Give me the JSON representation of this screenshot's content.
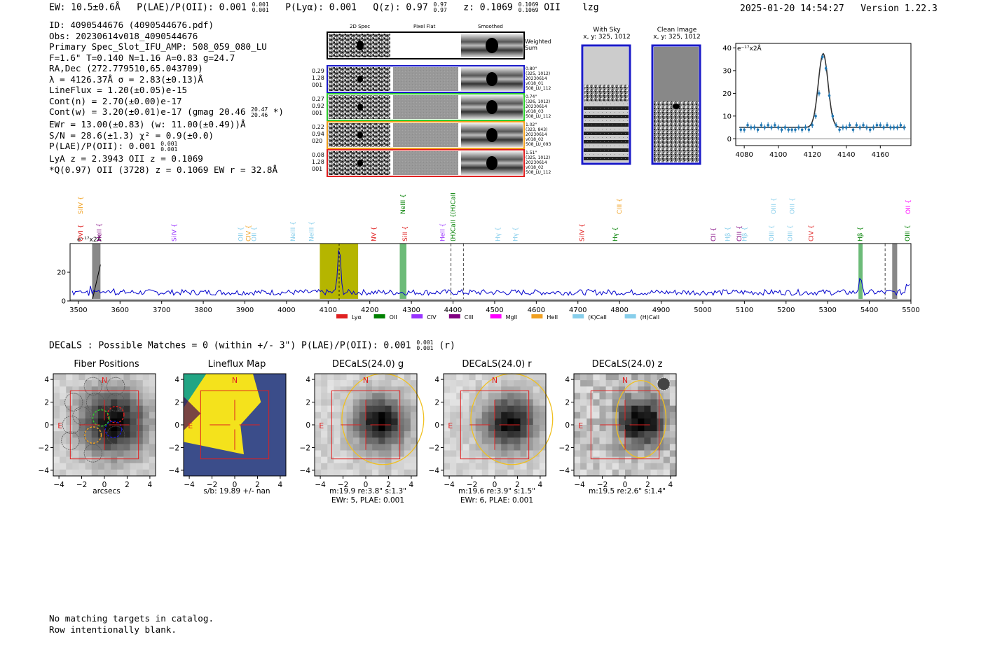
{
  "header": {
    "ew": "EW: 10.5±0.6Å",
    "plae_label": "P(LAE)/P(OII): 0.001",
    "plae_sup": "0.001",
    "plae_sub": "0.001",
    "plya_label": "P(Lyα): 0.001",
    "qz_label": "Q(z): 0.97",
    "qz_sup": "0.97",
    "qz_sub": "0.97",
    "z_label": "z: 0.1069",
    "z_sup": "0.1069",
    "z_sub": "0.1069",
    "line": "OII",
    "flag": "lzg",
    "timestamp": "2025-01-20 14:54:27",
    "version": "Version 1.22.3"
  },
  "info": {
    "id": "ID: 4090544676 (4090544676.pdf)",
    "obs": "Obs: 20230614v018_4090544676",
    "primary": "Primary Spec_Slot_IFU_AMP: 508_059_080_LU",
    "fit": "F=1.6\"  T=0.140  N=1.16  A=0.83  g=24.7",
    "radec": "RA,Dec (272.779510,65.043709)",
    "lambda": "λ = 4126.37Å  σ = 2.83(±0.13)Å",
    "lineflux": "LineFlux = 1.20(±0.05)e-15",
    "contn": "Cont(n) = 2.70(±0.00)e-17",
    "contw": "Cont(w) = 3.20(±0.01)e-17 (gmag 20.46",
    "gmag_sup": "20.47",
    "gmag_sub": "20.46",
    "contw_end": "*)",
    "ewr": "EWr = 13.00(±0.83) (w: 11.00(±0.49))Å",
    "sn": "S/N = 28.6(±1.3)  χ² = 0.9(±0.0)",
    "plae2": "P(LAE)/P(OII): 0.001",
    "plae2_sup": "0.001",
    "plae2_sub": "0.001",
    "lya": "LyA z = 2.3943  OII z = 0.1069",
    "q": "*Q(0.97) OII (3728) z = 0.1069  EW r = 32.8Å"
  },
  "cutouts": {
    "col_headers": [
      "2D Spec",
      "Pixel Flat",
      "Smoothed"
    ],
    "weighted_sum": [
      "Weighted",
      "Sum"
    ],
    "rows": [
      {
        "left": [
          "0.29",
          "1.28",
          "001"
        ],
        "right": [
          "0.80\"",
          "(325, 1012)",
          "20230614",
          "v018_01",
          "508_LU_112"
        ],
        "color": "#1a1ac8"
      },
      {
        "left": [
          "0.27",
          "0.92",
          "001"
        ],
        "right": [
          "0.74\"",
          "(326, 1012)",
          "20230614",
          "v018_03",
          "508_LU_112"
        ],
        "color": "#2ecc2e"
      },
      {
        "left": [
          "0.22",
          "0.94",
          "020"
        ],
        "right": [
          "1.02\"",
          "(323, 843)",
          "20230614",
          "v018_02",
          "508_LU_093"
        ],
        "color": "#f0a020"
      },
      {
        "left": [
          "0.08",
          "1.28",
          "001"
        ],
        "right": [
          "1.51\"",
          "(325, 1012)",
          "20230614",
          "v018_02",
          "508_LU_112"
        ],
        "color": "#e02020"
      }
    ],
    "with_sky_title": "With Sky",
    "with_sky_xy": "x, y: 325, 1012",
    "clean_title": "Clean Image",
    "clean_xy": "x, y: 325, 1012"
  },
  "zoom_chart": {
    "ylabel": "e⁻¹⁷x2Å",
    "x_ticks": [
      "4080",
      "4100",
      "4120",
      "4140",
      "4160"
    ],
    "y_ticks": [
      "0",
      "10",
      "20",
      "30",
      "40"
    ]
  },
  "spectrum_labels": {
    "ylabel": "e⁻¹⁷x2Å",
    "legend": [
      "Lyα",
      "OII",
      "CIV",
      "CIII",
      "MgII",
      "HeII",
      "(K)CaII",
      "(H)CaII"
    ],
    "top_lines": [
      {
        "name": "SiIV",
        "color": "#f0a020"
      },
      {
        "name": "NeIII",
        "color": "#008000"
      },
      {
        "name": "(H)CaII",
        "color": "#008000"
      },
      {
        "name": "CIII",
        "color": "#f0a020"
      },
      {
        "name": "OIII",
        "color": "#87ceeb"
      },
      {
        "name": "OIII",
        "color": "#87ceeb"
      },
      {
        "name": "OII",
        "color": "#ff00ff"
      }
    ],
    "mid_lines": [
      {
        "name": "OVI",
        "color": "#e02020"
      },
      {
        "name": "HeII",
        "color": "#800080"
      },
      {
        "name": "SiIV",
        "color": "#9933ff"
      },
      {
        "name": "OII",
        "color": "#87ceeb"
      },
      {
        "name": "CIV",
        "color": "#f0a020"
      },
      {
        "name": "OII",
        "color": "#87ceeb"
      },
      {
        "name": "NeIII",
        "color": "#87ceeb"
      },
      {
        "name": "NeIII",
        "color": "#87ceeb"
      },
      {
        "name": "NV",
        "color": "#e02020"
      },
      {
        "name": "SiII",
        "color": "#e02020"
      },
      {
        "name": "HeII",
        "color": "#9933ff"
      },
      {
        "name": "(H)CaII",
        "color": "#008000"
      },
      {
        "name": "Hγ",
        "color": "#87ceeb"
      },
      {
        "name": "Hγ",
        "color": "#87ceeb"
      },
      {
        "name": "SiIV",
        "color": "#e02020"
      },
      {
        "name": "Hγ",
        "color": "#008000"
      },
      {
        "name": "CII",
        "color": "#800080"
      },
      {
        "name": "Hβ",
        "color": "#87ceeb"
      },
      {
        "name": "CIII",
        "color": "#800080"
      },
      {
        "name": "Hβ",
        "color": "#87ceeb"
      },
      {
        "name": "OIII",
        "color": "#87ceeb"
      },
      {
        "name": "OIII",
        "color": "#87ceeb"
      },
      {
        "name": "CIV",
        "color": "#e02020"
      },
      {
        "name": "Hβ",
        "color": "#008000"
      },
      {
        "name": "OIII",
        "color": "#008000"
      }
    ]
  },
  "decals": {
    "header": "DECaLS : Possible Matches = 0 (within +/- 3\")  P(LAE)/P(OII): 0.001",
    "header_sup": "0.001",
    "header_sub": "0.001",
    "header_end": "(r)",
    "panels": [
      {
        "title": "Fiber Positions",
        "caption1": "arcsecs",
        "caption2": ""
      },
      {
        "title": "Lineflux Map",
        "caption1": "s/b: 19.89 +/- nan",
        "caption2": ""
      },
      {
        "title": "DECaLS(24.0) g",
        "caption1": "m:19.9  re:3.8\"  s:1.3\"",
        "caption2": "EWr: 5, PLAE: 0.001"
      },
      {
        "title": "DECaLS(24.0) r",
        "caption1": "m:19.6  re:3.9\"  s:1.5\"",
        "caption2": "EWr: 6, PLAE: 0.001"
      },
      {
        "title": "DECaLS(24.0) z",
        "caption1": "m:19.5  re:2.6\"  s:1.4\"",
        "caption2": ""
      }
    ],
    "axis_ticks": [
      "−4",
      "−2",
      "0",
      "2",
      "4"
    ],
    "compass_n": "N",
    "compass_e": "E"
  },
  "footer": {
    "line1": "No matching targets in catalog.",
    "line2": "Row intentionally blank."
  },
  "colors": {
    "lya": "#e02020",
    "oii": "#008000",
    "civ": "#9933ff",
    "ciii": "#800080",
    "mgii": "#ff00ff",
    "heii": "#f0a020",
    "kcaii": "#87ceeb",
    "hcaii": "#87ceeb",
    "spectrum": "#0000cc",
    "zoom_points": "#1f77b4"
  },
  "chart_data": [
    {
      "type": "scatter",
      "title": "",
      "xlabel": "",
      "ylabel": "e⁻¹⁷x2Å",
      "xlim": [
        4075,
        4178
      ],
      "ylim": [
        -3,
        42
      ],
      "x": [
        4078,
        4080,
        4082,
        4084,
        4086,
        4088,
        4090,
        4092,
        4094,
        4096,
        4098,
        4100,
        4102,
        4104,
        4106,
        4108,
        4110,
        4112,
        4114,
        4116,
        4118,
        4120,
        4122,
        4124,
        4126,
        4128,
        4130,
        4132,
        4134,
        4136,
        4138,
        4140,
        4142,
        4144,
        4146,
        4148,
        4150,
        4152,
        4154,
        4156,
        4158,
        4160,
        4162,
        4164,
        4166,
        4168,
        4170,
        4172,
        4174
      ],
      "y": [
        4,
        4,
        6,
        5,
        5,
        4,
        6,
        5,
        6,
        5,
        6,
        5,
        4,
        5,
        4,
        4,
        4,
        5,
        4,
        5,
        4,
        6,
        10,
        20,
        36,
        31,
        19,
        10,
        6,
        4,
        5,
        5,
        6,
        4,
        6,
        5,
        6,
        5,
        4,
        5,
        6,
        6,
        5,
        6,
        5,
        5,
        5,
        6,
        5
      ],
      "fit_peak": 37.5,
      "fit_center": 4126.4,
      "fit_sigma": 2.83,
      "fit_continuum": 5
    },
    {
      "type": "line",
      "title": "",
      "ylabel": "e⁻¹⁷x2Å",
      "xlim": [
        3480,
        5500
      ],
      "ylim": [
        0,
        40
      ],
      "x_ticks": [
        3500,
        3600,
        3700,
        3800,
        3900,
        4000,
        4100,
        4200,
        4300,
        4400,
        4500,
        4600,
        4700,
        4800,
        4900,
        5000,
        5100,
        5200,
        5300,
        5400,
        5500
      ],
      "y_ticks": [
        0,
        20
      ],
      "emission_peak": {
        "x": 4126.4,
        "y": 38
      },
      "secondary_peak": {
        "x": 5378,
        "y": 17
      },
      "continuum_level": 6
    }
  ]
}
